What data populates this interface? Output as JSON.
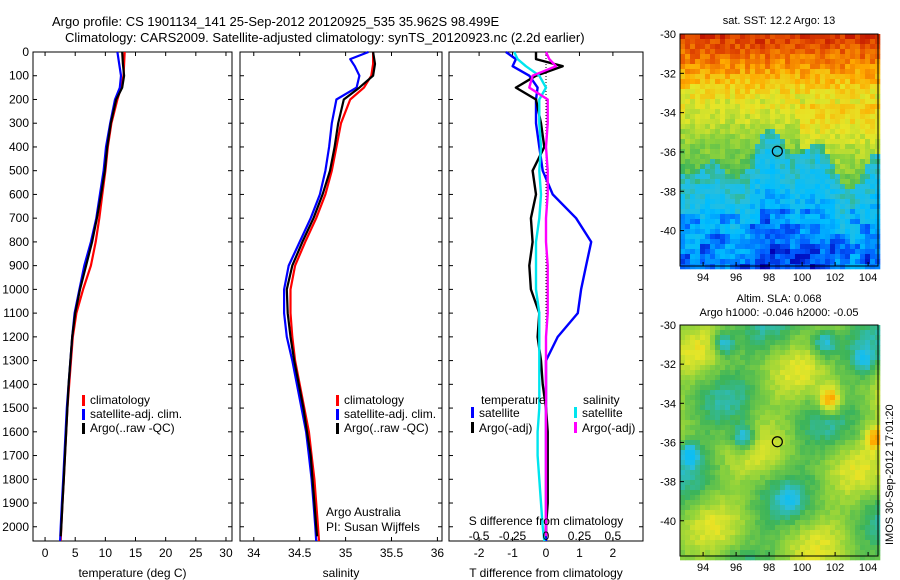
{
  "header": {
    "line1": "Argo profile: CS 1901134_141 25-Sep-2012 20120925_535 35.962S 98.499E",
    "line2": "Climatology: CARS2009. Satellite-adjusted climatology: synTS_20120923.nc (2.2d earlier)"
  },
  "chart_data": [
    {
      "id": "temperature",
      "type": "line",
      "xlabel": "temperature (deg C)",
      "ylabel": "",
      "xlim": [
        -2,
        31
      ],
      "ylim": [
        2060,
        0
      ],
      "xticks": [
        "0",
        "5",
        "10",
        "15",
        "20",
        "25",
        "30"
      ],
      "xtick_values": [
        0,
        5,
        10,
        15,
        20,
        25,
        30
      ],
      "yticks": [
        "0",
        "100",
        "200",
        "300",
        "400",
        "500",
        "600",
        "700",
        "800",
        "900",
        "1000",
        "1100",
        "1200",
        "1300",
        "1400",
        "1500",
        "1600",
        "1700",
        "1800",
        "1900",
        "2000"
      ],
      "ytick_values": [
        0,
        100,
        200,
        300,
        400,
        500,
        600,
        700,
        800,
        900,
        1000,
        1100,
        1200,
        1300,
        1400,
        1500,
        1600,
        1700,
        1800,
        1900,
        2000
      ],
      "legend": [
        "climatology",
        "satellite-adj. clim.",
        "Argo(..raw -QC)"
      ],
      "series": [
        {
          "name": "climatology",
          "color": "#ff0000",
          "depth": [
            0,
            50,
            100,
            150,
            200,
            300,
            400,
            500,
            600,
            700,
            800,
            900,
            1000,
            1100,
            1200,
            1300,
            1400,
            1500,
            1600,
            1700,
            1800,
            1900,
            2000,
            2060
          ],
          "values": [
            13.2,
            13.1,
            13.0,
            12.6,
            12.0,
            11.0,
            10.4,
            10.0,
            9.5,
            9.0,
            8.4,
            7.6,
            6.3,
            5.2,
            4.6,
            4.3,
            4.0,
            3.7,
            3.5,
            3.3,
            3.1,
            2.9,
            2.7,
            2.6
          ]
        },
        {
          "name": "satellite-adj. clim.",
          "color": "#0000ff",
          "depth": [
            0,
            50,
            100,
            150,
            200,
            300,
            400,
            500,
            600,
            700,
            800,
            900,
            1000,
            1100,
            1200,
            1300,
            1400,
            1500,
            1600,
            1700,
            1800,
            1900,
            2000,
            2060
          ],
          "values": [
            12.0,
            12.3,
            12.6,
            12.4,
            11.6,
            10.8,
            10.1,
            9.7,
            9.1,
            8.5,
            7.6,
            6.5,
            5.7,
            4.9,
            4.5,
            4.2,
            3.9,
            3.6,
            3.4,
            3.2,
            3.0,
            2.8,
            2.6,
            2.5
          ]
        },
        {
          "name": "Argo(..raw -QC)",
          "color": "#000000",
          "depth": [
            0,
            50,
            100,
            150,
            200,
            300,
            400,
            500,
            600,
            700,
            800,
            900,
            1000,
            1100,
            1200,
            1300,
            1400,
            1500,
            1600,
            1700,
            1800,
            1900,
            2000,
            2040
          ],
          "values": [
            12.8,
            12.9,
            13.1,
            12.8,
            11.8,
            10.9,
            10.3,
            9.9,
            9.3,
            8.6,
            7.8,
            6.8,
            5.8,
            5.0,
            4.5,
            4.2,
            3.9,
            3.7,
            3.5,
            3.3,
            3.1,
            2.9,
            2.7,
            2.6
          ]
        }
      ]
    },
    {
      "id": "salinity",
      "type": "line",
      "xlabel": "salinity",
      "xlim": [
        33.85,
        36.05
      ],
      "ylim": [
        2060,
        0
      ],
      "xticks": [
        "34",
        "34.5",
        "35",
        "35.5",
        "36"
      ],
      "xtick_values": [
        34,
        34.5,
        35,
        35.5,
        36
      ],
      "legend": [
        "climatology",
        "satellite-adj. clim.",
        "Argo(..raw -QC)"
      ],
      "annotation": [
        "Argo Australia",
        "PI: Susan Wijffels"
      ],
      "series": [
        {
          "name": "climatology",
          "color": "#ff0000",
          "depth": [
            0,
            50,
            100,
            150,
            200,
            300,
            400,
            500,
            600,
            700,
            800,
            900,
            1000,
            1100,
            1200,
            1300,
            1400,
            1500,
            1600,
            1700,
            1800,
            1900,
            2000,
            2060
          ],
          "values": [
            35.3,
            35.3,
            35.28,
            35.2,
            35.05,
            34.95,
            34.9,
            34.85,
            34.78,
            34.68,
            34.56,
            34.45,
            34.4,
            34.4,
            34.42,
            34.45,
            34.5,
            34.55,
            34.6,
            34.63,
            34.66,
            34.68,
            34.7,
            34.71
          ]
        },
        {
          "name": "satellite-adj. clim.",
          "color": "#0000ff",
          "depth": [
            0,
            30,
            60,
            100,
            150,
            200,
            300,
            400,
            500,
            600,
            700,
            800,
            900,
            1000,
            1100,
            1200,
            1300,
            1400,
            1500,
            1600,
            1700,
            1800,
            1900,
            2000,
            2060
          ],
          "values": [
            35.25,
            35.05,
            35.1,
            35.15,
            35.12,
            34.9,
            34.85,
            34.82,
            34.78,
            34.72,
            34.62,
            34.5,
            34.38,
            34.33,
            34.33,
            34.36,
            34.42,
            34.47,
            34.52,
            34.57,
            34.6,
            34.63,
            34.65,
            34.67,
            34.68
          ]
        },
        {
          "name": "Argo(..raw -QC)",
          "color": "#000000",
          "depth": [
            0,
            50,
            100,
            150,
            200,
            300,
            400,
            500,
            600,
            700,
            800,
            900,
            1000,
            1100,
            1200,
            1300,
            1400,
            1500,
            1600,
            1700,
            1800,
            1900,
            2000,
            2040
          ],
          "values": [
            35.3,
            35.32,
            35.3,
            35.15,
            34.98,
            34.92,
            34.88,
            34.83,
            34.75,
            34.65,
            34.53,
            34.42,
            34.36,
            34.37,
            34.4,
            34.44,
            34.49,
            34.54,
            34.58,
            34.62,
            34.64,
            34.66,
            34.68,
            34.69
          ]
        }
      ]
    },
    {
      "id": "difference",
      "type": "line",
      "xlabel": "T difference from climatology",
      "toplabel": "S difference from climatology",
      "xlim": [
        -2.9,
        2.9
      ],
      "ylim": [
        2060,
        0
      ],
      "xticks": [
        "-2",
        "-1",
        "0",
        "1",
        "2"
      ],
      "xtick_values": [
        -2,
        -1,
        0,
        1,
        2
      ],
      "sticks": [
        "-0.5",
        "-0.25",
        "0",
        "0.25",
        "0.5"
      ],
      "stick_values": [
        -2,
        -1,
        0,
        1,
        2
      ],
      "legend_temperature": {
        "title": "temperature",
        "items": [
          "satellite",
          "Argo(-adj)"
        ]
      },
      "legend_salinity": {
        "title": "salinity",
        "items": [
          "satellite",
          "Argo(-adj)"
        ]
      },
      "series": [
        {
          "name": "T satellite",
          "color": "#0000ff",
          "depth": [
            0,
            30,
            60,
            100,
            150,
            200,
            300,
            400,
            500,
            600,
            700,
            800,
            900,
            1000,
            1100,
            1200,
            1300,
            1400,
            1500,
            1600,
            1700,
            1800,
            1900,
            2000,
            2060
          ],
          "values": [
            -1.2,
            -0.9,
            -1.0,
            -0.5,
            -0.25,
            -0.3,
            -0.3,
            -0.2,
            -0.1,
            0.2,
            0.9,
            1.35,
            1.2,
            1.05,
            0.95,
            0.35,
            0.0,
            0.0,
            0.0,
            0.0,
            0.0,
            0.0,
            0.0,
            0.0,
            0.0
          ]
        },
        {
          "name": "T Argo(-adj)",
          "color": "#000000",
          "depth": [
            0,
            30,
            60,
            100,
            150,
            200,
            300,
            400,
            500,
            600,
            700,
            800,
            900,
            1000,
            1100,
            1200,
            1300,
            1400,
            1500,
            1600,
            1700,
            1800,
            1900,
            2000,
            2040
          ],
          "values": [
            -0.3,
            -0.3,
            0.5,
            -0.3,
            -0.9,
            -0.3,
            -0.15,
            -0.05,
            -0.4,
            -0.3,
            -0.45,
            -0.4,
            -0.5,
            -0.45,
            -0.2,
            -0.25,
            -0.15,
            -0.1,
            0.0,
            0.05,
            0.05,
            0.05,
            0.05,
            0.0,
            0.0
          ]
        },
        {
          "name": "S satellite",
          "color": "#00e5ee",
          "depth": [
            0,
            30,
            60,
            100,
            150,
            200,
            300,
            400,
            500,
            600,
            700,
            800,
            900,
            1000,
            1100,
            1200,
            1300,
            1400,
            1500,
            1600,
            1700,
            1800,
            1900,
            2000,
            2060
          ],
          "values": [
            -0.95,
            -0.85,
            -0.6,
            -0.2,
            0.0,
            -0.2,
            -0.2,
            -0.15,
            -0.2,
            -0.15,
            -0.2,
            -0.3,
            -0.3,
            -0.3,
            -0.2,
            -0.2,
            -0.2,
            -0.2,
            -0.2,
            -0.25,
            -0.25,
            -0.2,
            -0.15,
            -0.1,
            -0.05
          ]
        },
        {
          "name": "S Argo(-adj)",
          "color": "#ff00ff",
          "depth": [
            0,
            30,
            60,
            100,
            150,
            200,
            300,
            400,
            500,
            600,
            700,
            800,
            900,
            1000,
            1100,
            1200,
            1300,
            1400,
            1500,
            1600,
            1700,
            1800,
            1900,
            2000,
            2040
          ],
          "values": [
            0.0,
            0.1,
            0.3,
            -0.4,
            -0.5,
            0.05,
            0.05,
            0.0,
            0.05,
            0.05,
            0.0,
            0.0,
            0.05,
            0.05,
            0.05,
            0.0,
            0.0,
            0.0,
            0.0,
            0.0,
            0.0,
            0.0,
            0.0,
            0.0,
            0.0
          ]
        }
      ]
    },
    {
      "id": "sst_map",
      "type": "heatmap",
      "title": "sat. SST: 12.2 Argo: 13",
      "xlim": [
        92.6,
        104.6
      ],
      "ylim": [
        -41.8,
        -30.0
      ],
      "xticks": [
        "94",
        "96",
        "98",
        "100",
        "102",
        "104"
      ],
      "xtick_values": [
        94,
        96,
        98,
        100,
        102,
        104
      ],
      "yticks": [
        "-30",
        "-32",
        "-34",
        "-36",
        "-38",
        "-40"
      ],
      "ytick_values": [
        -30,
        -32,
        -34,
        -36,
        -38,
        -40
      ],
      "marker": {
        "lon": 98.499,
        "lat": -35.962
      }
    },
    {
      "id": "sla_map",
      "type": "heatmap",
      "title_line1": "Altim. SLA: 0.068",
      "title_line2": "Argo h1000: -0.046 h2000: -0.05",
      "xlim": [
        92.6,
        104.6
      ],
      "ylim": [
        -41.8,
        -30.0
      ],
      "xticks": [
        "94",
        "96",
        "98",
        "100",
        "102",
        "104"
      ],
      "xtick_values": [
        94,
        96,
        98,
        100,
        102,
        104
      ],
      "yticks": [
        "-30",
        "-32",
        "-34",
        "-36",
        "-38",
        "-40"
      ],
      "ytick_values": [
        -30,
        -32,
        -34,
        -36,
        -38,
        -40
      ],
      "marker": {
        "lon": 98.499,
        "lat": -35.962
      }
    }
  ],
  "footer": {
    "side_label": "IMOS 30-Sep-2012 17:01:20"
  },
  "colors": {
    "climatology": "#ff0000",
    "satellite": "#0000ff",
    "argo": "#000000",
    "s_satellite": "#00e5ee",
    "s_argo": "#ff00ff"
  }
}
